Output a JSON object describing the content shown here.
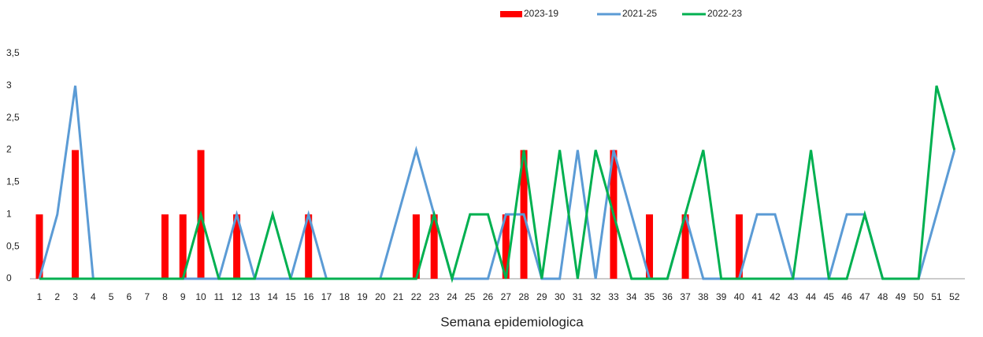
{
  "chart_data": {
    "type": "combo",
    "x_label": "Semana epidemiologica",
    "categories": [
      1,
      2,
      3,
      4,
      5,
      6,
      7,
      8,
      9,
      10,
      11,
      12,
      13,
      14,
      15,
      16,
      17,
      18,
      19,
      20,
      21,
      22,
      23,
      24,
      25,
      26,
      27,
      28,
      29,
      30,
      31,
      32,
      33,
      34,
      35,
      36,
      37,
      38,
      39,
      40,
      41,
      42,
      43,
      44,
      45,
      46,
      47,
      48,
      49,
      50,
      51,
      52
    ],
    "series": [
      {
        "name": "2023-19",
        "type": "bar",
        "color": "#ff0000",
        "values": [
          1,
          0,
          2,
          0,
          0,
          0,
          0,
          1,
          1,
          2,
          0,
          1,
          0,
          0,
          0,
          1,
          0,
          0,
          0,
          0,
          0,
          1,
          1,
          0,
          0,
          0,
          1,
          2,
          0,
          0,
          0,
          0,
          2,
          0,
          1,
          0,
          1,
          0,
          0,
          1,
          0,
          0,
          0,
          0,
          0,
          0,
          0,
          0,
          0,
          0,
          0,
          0
        ]
      },
      {
        "name": "2021-25",
        "type": "line",
        "color": "#5b9bd5",
        "values": [
          0,
          1,
          3,
          0,
          0,
          0,
          0,
          0,
          0,
          0,
          0,
          1,
          0,
          0,
          0,
          1,
          0,
          0,
          0,
          0,
          1,
          2,
          1,
          0,
          0,
          0,
          1,
          1,
          0,
          0,
          2,
          0,
          2,
          1,
          0,
          0,
          1,
          0,
          0,
          0,
          1,
          1,
          0,
          0,
          0,
          1,
          1,
          0,
          0,
          0,
          1,
          2
        ]
      },
      {
        "name": "2022-23",
        "type": "line",
        "color": "#00b050",
        "values": [
          0,
          0,
          0,
          0,
          0,
          0,
          0,
          0,
          0,
          1,
          0,
          0,
          0,
          1,
          0,
          0,
          0,
          0,
          0,
          0,
          0,
          0,
          1,
          0,
          1,
          1,
          0,
          2,
          0,
          2,
          0,
          2,
          1,
          0,
          0,
          0,
          1,
          2,
          0,
          0,
          0,
          0,
          0,
          2,
          0,
          0,
          1,
          0,
          0,
          0,
          3,
          2
        ]
      }
    ],
    "ylim": [
      0,
      3.5
    ],
    "yticks": [
      0,
      {
        "value": 0.5,
        "label": "0,5"
      },
      1,
      {
        "value": 1.5,
        "label": "1,5"
      },
      2,
      {
        "value": 2.5,
        "label": "2,5"
      },
      3,
      {
        "value": 3.5,
        "label": "3,5"
      }
    ],
    "grid": false,
    "legend": "top"
  }
}
